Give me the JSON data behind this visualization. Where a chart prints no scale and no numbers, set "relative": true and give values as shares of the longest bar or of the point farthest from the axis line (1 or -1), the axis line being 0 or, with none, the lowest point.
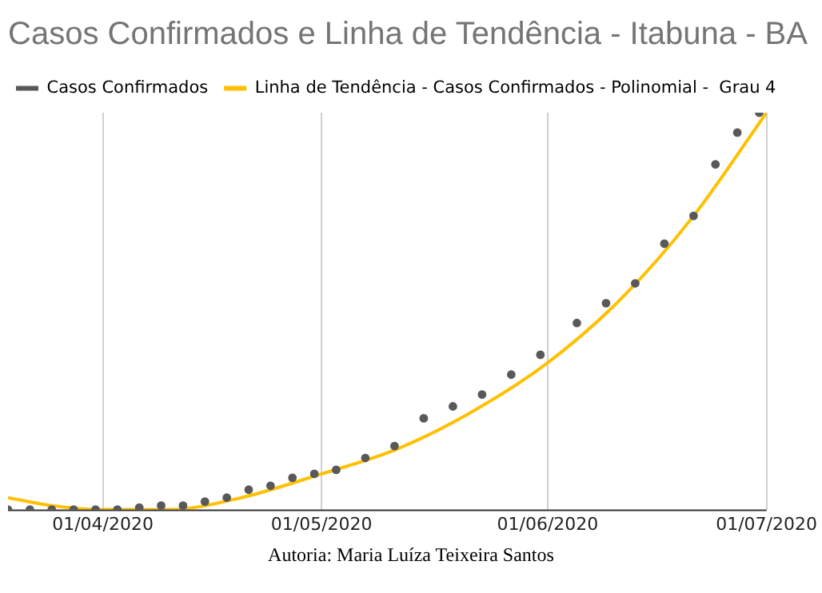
{
  "chart_data": {
    "type": "scatter",
    "title": "Casos Confirmados e Linha de Tendência - Itabuna - BA",
    "relative": true,
    "legend": "top",
    "grid": true,
    "xlim": [
      "2020-03-19",
      "2020-07-01"
    ],
    "xticks": [
      {
        "value": "2020-04-01",
        "label": "01/04/2020"
      },
      {
        "value": "2020-05-01",
        "label": "01/05/2020"
      },
      {
        "value": "2020-06-01",
        "label": "01/06/2020"
      },
      {
        "value": "2020-07-01",
        "label": "01/07/2020"
      }
    ],
    "series": [
      {
        "name": "Casos Confirmados",
        "marker": "circle",
        "color": "#595959",
        "x": [
          "2020-03-19",
          "2020-03-22",
          "2020-03-25",
          "2020-03-28",
          "2020-03-31",
          "2020-04-03",
          "2020-04-06",
          "2020-04-09",
          "2020-04-12",
          "2020-04-15",
          "2020-04-18",
          "2020-04-21",
          "2020-04-24",
          "2020-04-27",
          "2020-04-30",
          "2020-05-03",
          "2020-05-07",
          "2020-05-11",
          "2020-05-15",
          "2020-05-19",
          "2020-05-23",
          "2020-05-27",
          "2020-05-31",
          "2020-06-05",
          "2020-06-09",
          "2020-06-13",
          "2020-06-17",
          "2020-06-21",
          "2020-06-24",
          "2020-06-27",
          "2020-06-30"
        ],
        "values": [
          0,
          0,
          0,
          0,
          0,
          0,
          0.005,
          0.01,
          0.01,
          0.02,
          0.03,
          0.05,
          0.06,
          0.08,
          0.09,
          0.1,
          0.13,
          0.16,
          0.23,
          0.26,
          0.29,
          0.34,
          0.39,
          0.47,
          0.52,
          0.57,
          0.67,
          0.74,
          0.87,
          0.95,
          1
        ]
      },
      {
        "name": "Linha de Tendência - Casos Confirmados - Polinomial -  Grau 4",
        "type": "line",
        "color": "#ffc000",
        "x": [
          "2020-03-19",
          "2020-03-25",
          "2020-04-01",
          "2020-04-10",
          "2020-04-20",
          "2020-05-01",
          "2020-05-11",
          "2020-05-21",
          "2020-06-01",
          "2020-06-11",
          "2020-06-21",
          "2020-07-01"
        ],
        "values": [
          0.03,
          0.01,
          0,
          0,
          0.03,
          0.09,
          0.15,
          0.24,
          0.37,
          0.53,
          0.74,
          1
        ]
      }
    ],
    "annotations": [
      "Autoria: Maria Luíza Teixeira Santos"
    ]
  }
}
